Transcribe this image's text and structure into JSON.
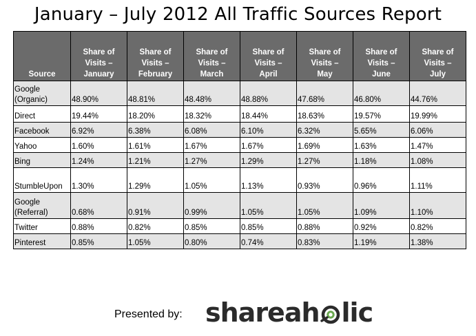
{
  "title": "January – July 2012 All Traffic Sources Report",
  "table": {
    "headers": [
      "Source",
      "Share of\nVisits –\nJanuary",
      "Share of\nVisits –\nFebruary",
      "Share of\nVisits –\nMarch",
      "Share of\nVisits –\nApril",
      "Share of\nVisits –\nMay",
      "Share of\nVisits –\nJune",
      "Share of\nVisits –\nJuly"
    ],
    "rows": [
      {
        "source": "Google\n(Organic)",
        "values": [
          "48.90%",
          "48.81%",
          "48.48%",
          "48.88%",
          "47.68%",
          "46.80%",
          "44.76%"
        ]
      },
      {
        "source": "Direct",
        "values": [
          "19.44%",
          "18.20%",
          "18.32%",
          "18.44%",
          "18.63%",
          "19.57%",
          "19.99%"
        ]
      },
      {
        "source": "Facebook",
        "values": [
          "6.92%",
          "6.38%",
          "6.08%",
          "6.10%",
          "6.32%",
          "5.65%",
          "6.06%"
        ]
      },
      {
        "source": "Yahoo",
        "values": [
          "1.60%",
          "1.61%",
          "1.67%",
          "1.67%",
          "1.69%",
          "1.63%",
          "1.47%"
        ]
      },
      {
        "source": "Bing",
        "values": [
          "1.24%",
          "1.21%",
          "1.27%",
          "1.29%",
          "1.27%",
          "1.18%",
          "1.08%"
        ]
      },
      {
        "source": "StumbleUpon",
        "values": [
          "1.30%",
          "1.29%",
          "1.05%",
          "1.13%",
          "0.93%",
          "0.96%",
          "1.11%"
        ]
      },
      {
        "source": "Google\n(Referral)",
        "values": [
          "0.68%",
          "0.91%",
          "0.99%",
          "1.05%",
          "1.05%",
          "1.09%",
          "1.10%"
        ]
      },
      {
        "source": "Twitter",
        "values": [
          "0.88%",
          "0.82%",
          "0.85%",
          "0.85%",
          "0.88%",
          "0.92%",
          "0.82%"
        ]
      },
      {
        "source": "Pinterest",
        "values": [
          "0.85%",
          "1.05%",
          "0.80%",
          "0.74%",
          "0.83%",
          "1.19%",
          "1.38%"
        ]
      }
    ]
  },
  "footer": {
    "presented_by": "Presented by:",
    "logo_left": "shareah",
    "logo_right": "lic",
    "logo_icon": "shareaholic-o-icon",
    "logo_accent": "#6aa84f"
  },
  "colors": {
    "header_bg": "#6b6b6b",
    "header_text": "#ffffff",
    "row_shade": "#e4e4e4"
  }
}
